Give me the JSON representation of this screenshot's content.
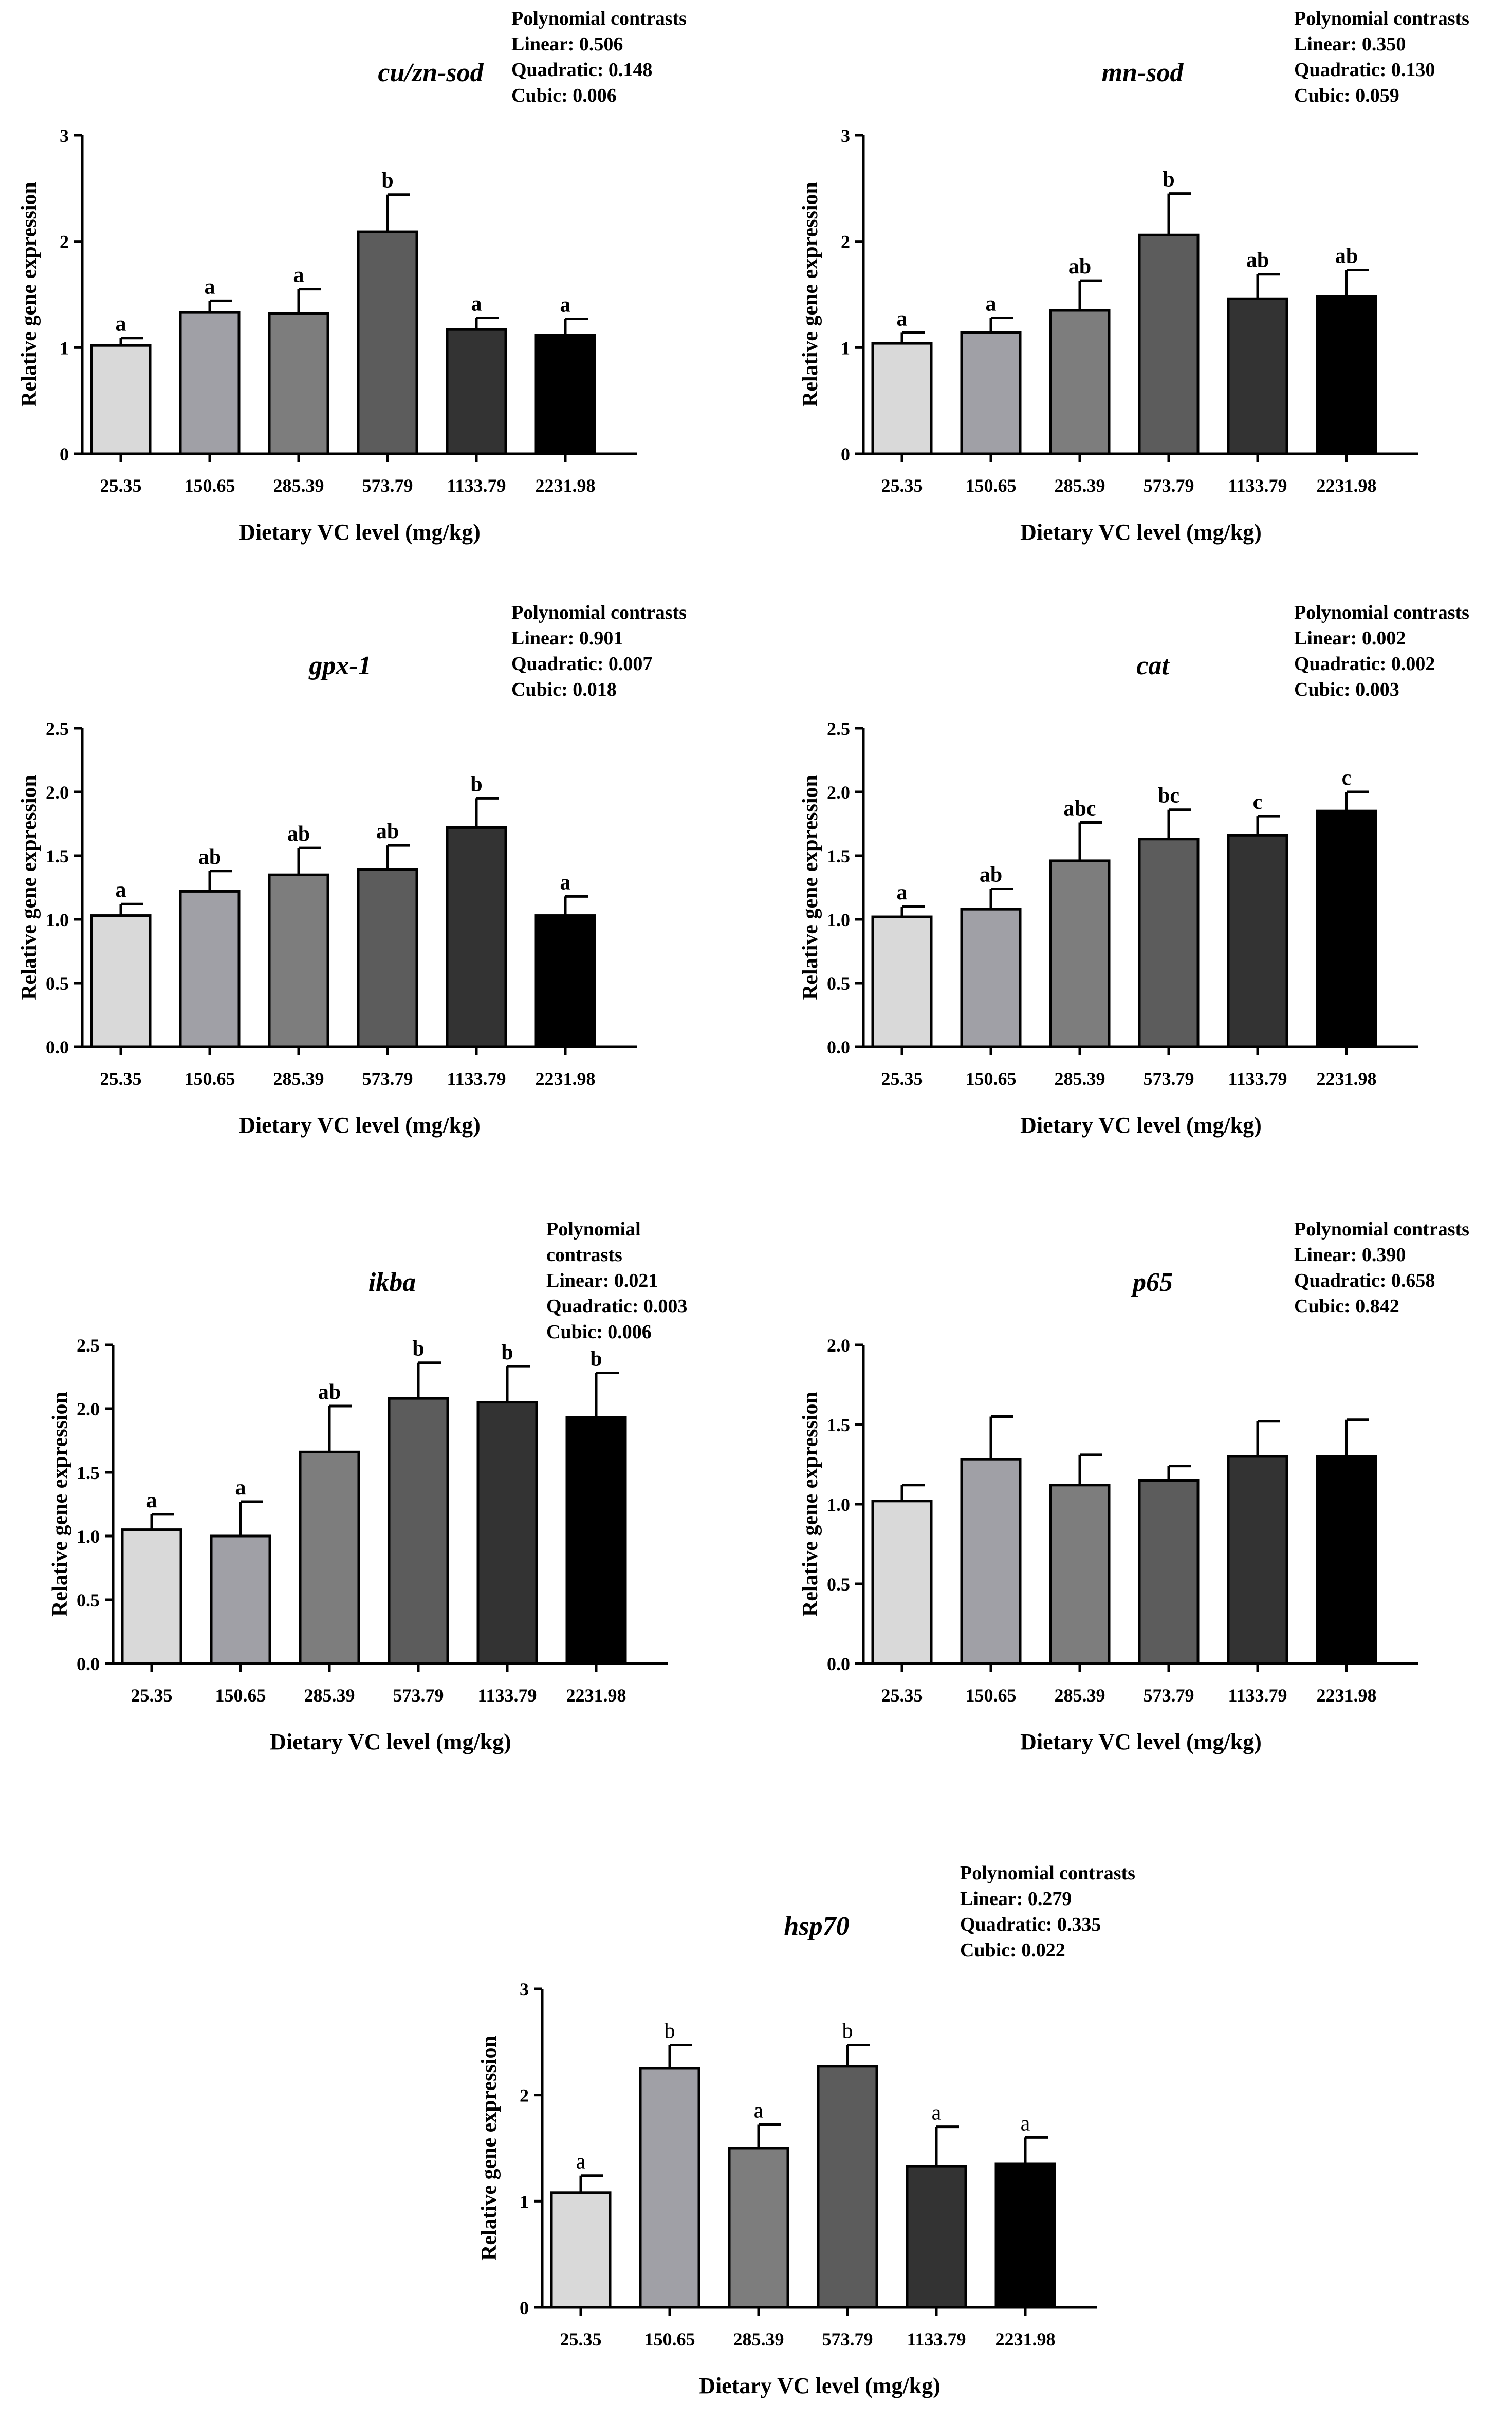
{
  "figure": {
    "xlabel": "Dietary VC level (mg/kg)",
    "ylabel": "Relative gene expression",
    "contrasts_title": "Polynomial contrasts",
    "bar_colors": [
      "#d9d9d9",
      "#a0a0a6",
      "#7d7d7d",
      "#5c5c5c",
      "#333333",
      "#000000"
    ]
  },
  "chart_data": [
    {
      "type": "bar",
      "title": "cu/zn-sod",
      "categories": [
        "25.35",
        "150.65",
        "285.39",
        "573.79",
        "1133.79",
        "2231.98"
      ],
      "values": [
        1.02,
        1.33,
        1.32,
        2.09,
        1.17,
        1.12
      ],
      "errors": [
        0.07,
        0.11,
        0.23,
        0.35,
        0.11,
        0.15
      ],
      "letters": [
        "a",
        "a",
        "a",
        "b",
        "a",
        "a"
      ],
      "ylim": [
        0,
        3
      ],
      "yticks": [
        "0",
        "1",
        "2",
        "3"
      ],
      "xlabel": "Dietary VC level (mg/kg)",
      "ylabel": "Relative gene expression",
      "contrasts": {
        "title": "Polynomial contrasts",
        "lines": [
          "Linear: 0.506",
          "Quadratic: 0.148",
          "Cubic: 0.006"
        ]
      }
    },
    {
      "type": "bar",
      "title": "mn-sod",
      "categories": [
        "25.35",
        "150.65",
        "285.39",
        "573.79",
        "1133.79",
        "2231.98"
      ],
      "values": [
        1.04,
        1.14,
        1.35,
        2.06,
        1.46,
        1.48
      ],
      "errors": [
        0.1,
        0.14,
        0.28,
        0.39,
        0.23,
        0.25
      ],
      "letters": [
        "a",
        "a",
        "ab",
        "b",
        "ab",
        "ab"
      ],
      "ylim": [
        0,
        3
      ],
      "yticks": [
        "0",
        "1",
        "2",
        "3"
      ],
      "xlabel": "Dietary VC level (mg/kg)",
      "ylabel": "Relative gene expression",
      "contrasts": {
        "title": "Polynomial contrasts",
        "lines": [
          "Linear: 0.350",
          "Quadratic: 0.130",
          "Cubic: 0.059"
        ]
      }
    },
    {
      "type": "bar",
      "title": "gpx-1",
      "categories": [
        "25.35",
        "150.65",
        "285.39",
        "573.79",
        "1133.79",
        "2231.98"
      ],
      "values": [
        1.03,
        1.22,
        1.35,
        1.39,
        1.72,
        1.03
      ],
      "errors": [
        0.09,
        0.16,
        0.21,
        0.19,
        0.23,
        0.15
      ],
      "letters": [
        "a",
        "ab",
        "ab",
        "ab",
        "b",
        "a"
      ],
      "ylim": [
        0,
        2.5
      ],
      "yticks": [
        "0.0",
        "0.5",
        "1.0",
        "1.5",
        "2.0",
        "2.5"
      ],
      "xlabel": "Dietary VC level (mg/kg)",
      "ylabel": "Relative gene expression",
      "contrasts": {
        "title": "Polynomial contrasts",
        "lines": [
          "Linear: 0.901",
          "Quadratic: 0.007",
          "Cubic: 0.018"
        ]
      }
    },
    {
      "type": "bar",
      "title": "cat",
      "categories": [
        "25.35",
        "150.65",
        "285.39",
        "573.79",
        "1133.79",
        "2231.98"
      ],
      "values": [
        1.02,
        1.08,
        1.46,
        1.63,
        1.66,
        1.85
      ],
      "errors": [
        0.08,
        0.16,
        0.3,
        0.23,
        0.15,
        0.15
      ],
      "letters": [
        "a",
        "ab",
        "abc",
        "bc",
        "c",
        "c"
      ],
      "ylim": [
        0,
        2.5
      ],
      "yticks": [
        "0.0",
        "0.5",
        "1.0",
        "1.5",
        "2.0",
        "2.5"
      ],
      "xlabel": "Dietary VC level (mg/kg)",
      "ylabel": "Relative gene expression",
      "contrasts": {
        "title": "Polynomial contrasts",
        "lines": [
          "Linear: 0.002",
          "Quadratic: 0.002",
          "Cubic: 0.003"
        ]
      }
    },
    {
      "type": "bar",
      "title": "ikba",
      "categories": [
        "25.35",
        "150.65",
        "285.39",
        "573.79",
        "1133.79",
        "2231.98"
      ],
      "values": [
        1.05,
        1.0,
        1.66,
        2.08,
        2.05,
        1.93
      ],
      "errors": [
        0.12,
        0.27,
        0.36,
        0.28,
        0.28,
        0.35
      ],
      "letters": [
        "a",
        "a",
        "ab",
        "b",
        "b",
        "b"
      ],
      "ylim": [
        0,
        2.5
      ],
      "yticks": [
        "0.0",
        "0.5",
        "1.0",
        "1.5",
        "2.0",
        "2.5"
      ],
      "xlabel": "Dietary VC level (mg/kg)",
      "ylabel": "Relative gene expression",
      "contrasts": {
        "title": "Polynomial contrasts",
        "title_lines": [
          "Polynomial",
          "contrasts"
        ],
        "lines": [
          "Linear: 0.021",
          "Quadratic: 0.003",
          "Cubic: 0.006"
        ]
      }
    },
    {
      "type": "bar",
      "title": "p65",
      "categories": [
        "25.35",
        "150.65",
        "285.39",
        "573.79",
        "1133.79",
        "2231.98"
      ],
      "values": [
        1.02,
        1.28,
        1.12,
        1.15,
        1.3,
        1.3
      ],
      "errors": [
        0.1,
        0.27,
        0.19,
        0.09,
        0.22,
        0.23
      ],
      "letters": [
        "",
        "",
        "",
        "",
        "",
        ""
      ],
      "ylim": [
        0,
        2.0
      ],
      "yticks": [
        "0.0",
        "0.5",
        "1.0",
        "1.5",
        "2.0"
      ],
      "xlabel": "Dietary VC level (mg/kg)",
      "ylabel": "Relative gene expression",
      "contrasts": {
        "title": "Polynomial contrasts",
        "lines": [
          "Linear: 0.390",
          "Quadratic: 0.658",
          "Cubic: 0.842"
        ]
      }
    },
    {
      "type": "bar",
      "title": "hsp70",
      "categories": [
        "25.35",
        "150.65",
        "285.39",
        "573.79",
        "1133.79",
        "2231.98"
      ],
      "values": [
        1.08,
        2.25,
        1.5,
        2.27,
        1.33,
        1.35
      ],
      "errors": [
        0.16,
        0.22,
        0.22,
        0.2,
        0.37,
        0.25
      ],
      "letters": [
        "a",
        "b",
        "a",
        "b",
        "a",
        "a"
      ],
      "ylim": [
        0,
        3
      ],
      "yticks": [
        "0",
        "1",
        "2",
        "3"
      ],
      "xlabel": "Dietary VC level (mg/kg)",
      "ylabel": "Relative gene expression",
      "contrasts": {
        "title": "Polynomial contrasts",
        "lines": [
          "Linear: 0.279",
          "Quadratic: 0.335",
          "Cubic: 0.022"
        ]
      }
    }
  ]
}
